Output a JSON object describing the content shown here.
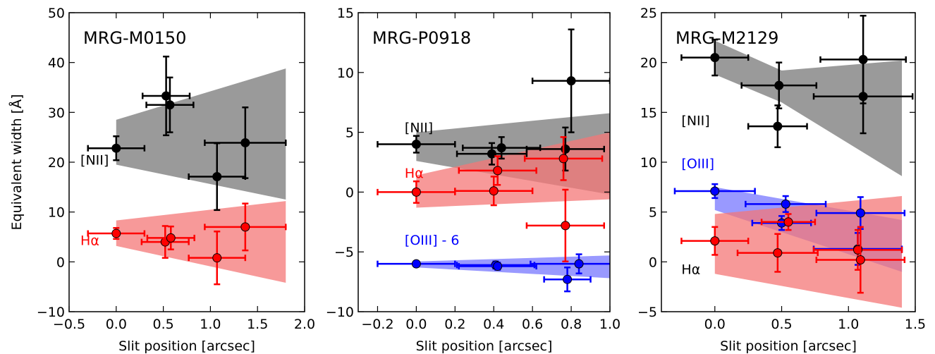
{
  "chart_data": [
    {
      "type": "scatter",
      "title": "MRG-M0150",
      "xlabel": "Slit position [arcsec]",
      "ylabel": "Equivalent width [Å]",
      "xlim": [
        -0.5,
        2.0
      ],
      "ylim": [
        -10,
        50
      ],
      "xticks": [
        -0.5,
        0.0,
        0.5,
        1.0,
        1.5,
        2.0
      ],
      "xtick_labels": [
        "−0.5",
        "0.0",
        "0.5",
        "1.0",
        "1.5",
        "2.0"
      ],
      "yticks": [
        -10,
        0,
        10,
        20,
        30,
        40,
        50
      ],
      "ytick_labels": [
        "−10",
        "0",
        "10",
        "20",
        "30",
        "40",
        "50"
      ],
      "bands": [
        {
          "color": "#888888",
          "opacity": 0.85,
          "x": [
            0.0,
            1.8
          ],
          "lower": [
            19.5,
            12.5
          ],
          "upper": [
            28.5,
            38.8
          ]
        },
        {
          "color": "#f47777",
          "opacity": 0.75,
          "x": [
            0.0,
            1.8
          ],
          "lower": [
            3.2,
            -4.2
          ],
          "upper": [
            8.3,
            12.2
          ]
        }
      ],
      "series": [
        {
          "color": "#000000",
          "points": [
            {
              "x": 0.0,
              "y": 22.8,
              "xerr": 0.3,
              "yerr": 2.4
            },
            {
              "x": 0.53,
              "y": 33.3,
              "xerr": 0.25,
              "yerr": 7.9
            },
            {
              "x": 0.57,
              "y": 31.5,
              "xerr": 0.25,
              "yerr": 5.5
            },
            {
              "x": 1.07,
              "y": 17.1,
              "xerr": 0.3,
              "yerr": 6.7
            },
            {
              "x": 1.37,
              "y": 23.9,
              "xerr": 0.43,
              "yerr": 7.1
            }
          ]
        },
        {
          "color": "#ff0000",
          "points": [
            {
              "x": 0.0,
              "y": 5.7,
              "xerr": 0.3,
              "yerr": 1.1
            },
            {
              "x": 0.52,
              "y": 4.0,
              "xerr": 0.25,
              "yerr": 3.2
            },
            {
              "x": 0.58,
              "y": 4.8,
              "xerr": 0.25,
              "yerr": 2.3
            },
            {
              "x": 1.07,
              "y": 0.8,
              "xerr": 0.3,
              "yerr": 5.3
            },
            {
              "x": 1.37,
              "y": 7.0,
              "xerr": 0.43,
              "yerr": 4.7
            }
          ]
        }
      ],
      "annotations": [
        {
          "text": "[NII]",
          "color": "#000000",
          "x": -0.38,
          "y": 19.5
        },
        {
          "text": "Hα",
          "color": "#ff0000",
          "x": -0.38,
          "y": 3.4
        }
      ]
    },
    {
      "type": "scatter",
      "title": "MRG-P0918",
      "xlabel": "Slit position [arcsec]",
      "ylabel": "",
      "xlim": [
        -0.3,
        1.0
      ],
      "ylim": [
        -10,
        15
      ],
      "xticks": [
        -0.2,
        0.0,
        0.2,
        0.4,
        0.6,
        0.8,
        1.0
      ],
      "xtick_labels": [
        "−0.2",
        "0.0",
        "0.2",
        "0.4",
        "0.6",
        "0.8",
        "1.0"
      ],
      "yticks": [
        -10,
        -5,
        0,
        5,
        10,
        15
      ],
      "ytick_labels": [
        "−10",
        "−5",
        "0",
        "5",
        "10",
        "15"
      ],
      "bands": [
        {
          "color": "#888888",
          "opacity": 0.85,
          "x": [
            0.0,
            1.0
          ],
          "lower": [
            2.6,
            -0.2
          ],
          "upper": [
            5.0,
            6.6
          ]
        },
        {
          "color": "#f47777",
          "opacity": 0.75,
          "x": [
            0.0,
            1.0
          ],
          "lower": [
            -1.3,
            -0.6
          ],
          "upper": [
            1.4,
            5.0
          ]
        },
        {
          "color": "#5555ff",
          "opacity": 0.6,
          "x": [
            0.0,
            1.0
          ],
          "lower": [
            -6.3,
            -7.2
          ],
          "upper": [
            -5.8,
            -5.3
          ]
        }
      ],
      "series": [
        {
          "color": "#000000",
          "points": [
            {
              "x": 0.0,
              "y": 4.0,
              "xerr": 0.2,
              "yerr": 0.7
            },
            {
              "x": 0.39,
              "y": 3.2,
              "xerr": 0.18,
              "yerr": 0.9
            },
            {
              "x": 0.44,
              "y": 3.7,
              "xerr": 0.2,
              "yerr": 0.9
            },
            {
              "x": 0.77,
              "y": 3.6,
              "xerr": 0.2,
              "yerr": 1.8
            },
            {
              "x": 0.8,
              "y": 9.3,
              "xerr": 0.2,
              "yerr": 4.3
            }
          ]
        },
        {
          "color": "#ff0000",
          "points": [
            {
              "x": 0.0,
              "y": 0.0,
              "xerr": 0.2,
              "yerr": 0.9
            },
            {
              "x": 0.4,
              "y": 0.1,
              "xerr": 0.2,
              "yerr": 1.2
            },
            {
              "x": 0.42,
              "y": 1.8,
              "xerr": 0.2,
              "yerr": 1.2
            },
            {
              "x": 0.76,
              "y": 2.8,
              "xerr": 0.2,
              "yerr": 1.8
            },
            {
              "x": 0.77,
              "y": -2.8,
              "xerr": 0.2,
              "yerr": 3.0
            }
          ]
        },
        {
          "color": "#0000ff",
          "points": [
            {
              "x": 0.0,
              "y": -6.0,
              "xerr": 0.2,
              "yerr": 0.2
            },
            {
              "x": 0.41,
              "y": -6.1,
              "xerr": 0.2,
              "yerr": 0.3
            },
            {
              "x": 0.42,
              "y": -6.2,
              "xerr": 0.2,
              "yerr": 0.3
            },
            {
              "x": 0.78,
              "y": -7.3,
              "xerr": 0.12,
              "yerr": 1.0
            },
            {
              "x": 0.84,
              "y": -6.0,
              "xerr": 0.25,
              "yerr": 0.8
            }
          ]
        }
      ],
      "annotations": [
        {
          "text": "[NII]",
          "color": "#000000",
          "x": -0.06,
          "y": 5.0
        },
        {
          "text": "Hα",
          "color": "#ff0000",
          "x": -0.06,
          "y": 1.2
        },
        {
          "text": "[OIII] - 6",
          "color": "#0000ff",
          "x": -0.06,
          "y": -4.4
        }
      ]
    },
    {
      "type": "scatter",
      "title": "MRG-M2129",
      "xlabel": "Slit position [arcsec]",
      "ylabel": "",
      "xlim": [
        -0.4,
        1.5
      ],
      "ylim": [
        -5,
        25
      ],
      "xticks": [
        0.0,
        0.5,
        1.0,
        1.5
      ],
      "xtick_labels": [
        "0.0",
        "0.5",
        "1.0",
        "1.5"
      ],
      "yticks": [
        -5,
        0,
        5,
        10,
        15,
        20,
        25
      ],
      "ytick_labels": [
        "−5",
        "0",
        "5",
        "10",
        "15",
        "20",
        "25"
      ],
      "bands": [
        {
          "color": "#888888",
          "opacity": 0.85,
          "x": [
            0.0,
            0.5,
            1.4
          ],
          "lower": [
            18.8,
            16.0,
            8.6
          ],
          "upper": [
            22.2,
            19.2,
            20.2
          ]
        },
        {
          "color": "#5555ff",
          "opacity": 0.6,
          "x": [
            0.0,
            1.4
          ],
          "lower": [
            5.2,
            -1.0
          ],
          "upper": [
            7.5,
            4.2
          ]
        },
        {
          "color": "#f47777",
          "opacity": 0.75,
          "x": [
            0.0,
            1.4
          ],
          "lower": [
            -1.2,
            -4.6
          ],
          "upper": [
            4.8,
            6.6
          ]
        }
      ],
      "series": [
        {
          "color": "#000000",
          "points": [
            {
              "x": 0.0,
              "y": 20.5,
              "xerr": 0.25,
              "yerr": 1.8
            },
            {
              "x": 0.48,
              "y": 17.7,
              "xerr": 0.28,
              "yerr": 2.3
            },
            {
              "x": 0.47,
              "y": 13.6,
              "xerr": 0.22,
              "yerr": 2.1
            },
            {
              "x": 1.11,
              "y": 20.3,
              "xerr": 0.32,
              "yerr": 4.4
            },
            {
              "x": 1.11,
              "y": 16.6,
              "xerr": 0.37,
              "yerr": 3.7
            }
          ]
        },
        {
          "color": "#0000ff",
          "points": [
            {
              "x": 0.0,
              "y": 7.1,
              "xerr": 0.3,
              "yerr": 0.7
            },
            {
              "x": 0.53,
              "y": 5.8,
              "xerr": 0.3,
              "yerr": 0.8
            },
            {
              "x": 0.5,
              "y": 3.9,
              "xerr": 0.22,
              "yerr": 0.7
            },
            {
              "x": 1.07,
              "y": 1.3,
              "xerr": 0.33,
              "yerr": 1.6
            },
            {
              "x": 1.09,
              "y": 4.9,
              "xerr": 0.33,
              "yerr": 1.6
            }
          ]
        },
        {
          "color": "#ff0000",
          "points": [
            {
              "x": 0.0,
              "y": 2.1,
              "xerr": 0.25,
              "yerr": 1.4
            },
            {
              "x": 0.55,
              "y": 4.0,
              "xerr": 0.2,
              "yerr": 0.8
            },
            {
              "x": 0.47,
              "y": 0.9,
              "xerr": 0.3,
              "yerr": 1.9
            },
            {
              "x": 1.07,
              "y": 1.2,
              "xerr": 0.33,
              "yerr": 2.0
            },
            {
              "x": 1.09,
              "y": 0.2,
              "xerr": 0.33,
              "yerr": 3.3
            }
          ]
        }
      ],
      "annotations": [
        {
          "text": "[NII]",
          "color": "#000000",
          "x": -0.25,
          "y": 13.7
        },
        {
          "text": "[OIII]",
          "color": "#0000ff",
          "x": -0.25,
          "y": 9.4
        },
        {
          "text": "Hα",
          "color": "#000000",
          "x": -0.25,
          "y": -1.2
        }
      ]
    }
  ]
}
